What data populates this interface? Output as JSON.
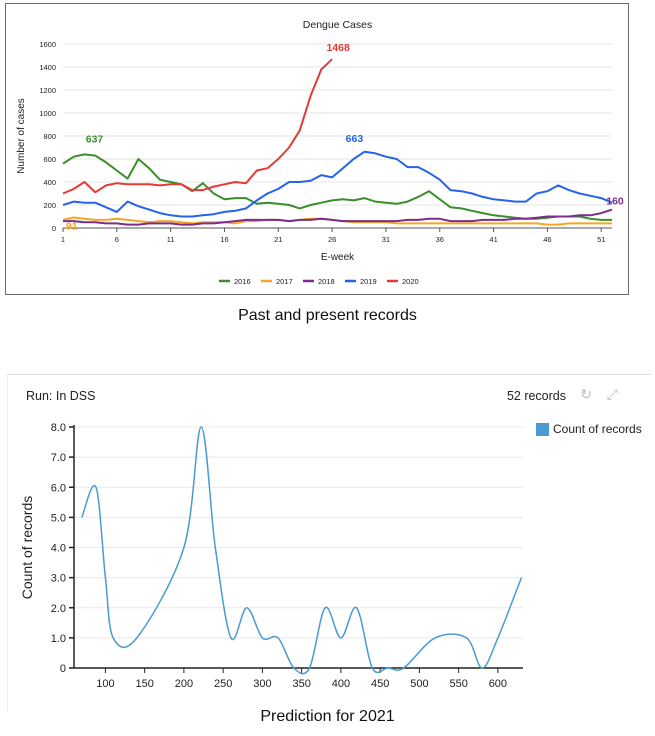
{
  "top_chart": {
    "title": "Dengue Cases",
    "ylabel": "Number of cases",
    "xlabel": "E-week",
    "caption": "Past and present records"
  },
  "bottom_chart": {
    "run_label": "Run: In DSS",
    "record_count": "52 records",
    "legend_label": "Count of records",
    "ylabel": "Count of records",
    "caption": "Prediction for 2021",
    "refresh_icon": "refresh-icon",
    "expand_icon": "expand-icon"
  },
  "colors": {
    "2016": "#3a8f2a",
    "2017": "#f5a623",
    "2018": "#7a2d8e",
    "2019": "#2563eb",
    "2020": "#e53935",
    "prediction": "#4a9bd1"
  },
  "chart_data": [
    {
      "type": "line",
      "title": "Dengue Cases",
      "xlabel": "E-week",
      "ylabel": "Number of cases",
      "xticks": [
        1,
        6,
        11,
        16,
        21,
        26,
        31,
        36,
        41,
        46,
        51
      ],
      "yticks": [
        0,
        200,
        400,
        600,
        800,
        1000,
        1200,
        1400,
        1600
      ],
      "xlim": [
        1,
        52
      ],
      "ylim": [
        0,
        1600
      ],
      "grid": true,
      "legend_position": "bottom",
      "annotations": [
        {
          "text": "637",
          "series": "2016"
        },
        {
          "text": "91",
          "series": "2017"
        },
        {
          "text": "1468",
          "series": "2020"
        },
        {
          "text": "663",
          "series": "2019"
        },
        {
          "text": "160",
          "series": "2018"
        }
      ],
      "series": [
        {
          "name": "2016",
          "x_start": 1,
          "values": [
            560,
            620,
            640,
            630,
            570,
            500,
            430,
            600,
            520,
            420,
            400,
            380,
            320,
            390,
            300,
            250,
            260,
            260,
            210,
            220,
            210,
            200,
            170,
            200,
            220,
            240,
            250,
            240,
            260,
            230,
            220,
            210,
            230,
            270,
            320,
            250,
            180,
            170,
            150,
            130,
            110,
            100,
            90,
            80,
            80,
            90,
            100,
            100,
            100,
            80,
            70,
            70
          ]
        },
        {
          "name": "2017",
          "x_start": 1,
          "values": [
            70,
            91,
            80,
            70,
            70,
            80,
            70,
            60,
            50,
            60,
            60,
            50,
            40,
            50,
            50,
            50,
            40,
            60,
            60,
            70,
            70,
            60,
            70,
            80,
            80,
            70,
            60,
            50,
            50,
            50,
            50,
            40,
            40,
            40,
            40,
            40,
            40,
            40,
            40,
            40,
            40,
            40,
            40,
            40,
            40,
            30,
            30,
            40,
            40,
            40,
            40,
            40
          ]
        },
        {
          "name": "2018",
          "x_start": 1,
          "values": [
            60,
            60,
            50,
            50,
            40,
            40,
            30,
            30,
            40,
            40,
            40,
            30,
            30,
            40,
            40,
            50,
            60,
            70,
            70,
            70,
            70,
            60,
            70,
            70,
            80,
            70,
            60,
            60,
            60,
            60,
            60,
            60,
            70,
            70,
            80,
            80,
            60,
            60,
            60,
            70,
            70,
            70,
            80,
            80,
            90,
            100,
            100,
            100,
            110,
            110,
            130,
            160
          ]
        },
        {
          "name": "2019",
          "x_start": 1,
          "values": [
            200,
            230,
            220,
            220,
            180,
            140,
            230,
            190,
            160,
            130,
            110,
            100,
            100,
            110,
            120,
            140,
            150,
            170,
            240,
            300,
            340,
            400,
            400,
            410,
            460,
            440,
            520,
            600,
            663,
            650,
            620,
            600,
            530,
            530,
            480,
            420,
            330,
            320,
            300,
            270,
            250,
            240,
            230,
            230,
            300,
            320,
            370,
            330,
            300,
            280,
            260,
            220
          ]
        },
        {
          "name": "2020",
          "x_start": 1,
          "values": [
            300,
            340,
            400,
            310,
            370,
            390,
            380,
            380,
            380,
            370,
            380,
            380,
            330,
            330,
            360,
            380,
            400,
            390,
            500,
            520,
            600,
            700,
            850,
            1150,
            1380,
            1468
          ]
        }
      ]
    },
    {
      "type": "line",
      "title": "",
      "xlabel": "",
      "ylabel": "Count of records",
      "xticks": [
        100,
        150,
        200,
        250,
        300,
        350,
        400,
        450,
        500,
        550,
        600
      ],
      "yticks": [
        0,
        1,
        2,
        3,
        4,
        5,
        6,
        7,
        8
      ],
      "ytick_labels": [
        "0",
        "1.0",
        "2.0",
        "3.0",
        "4.0",
        "5.0",
        "6.0",
        "7.0",
        "8.0"
      ],
      "xlim": [
        60,
        632
      ],
      "ylim": [
        0,
        8
      ],
      "grid": true,
      "legend_position": "top-right",
      "series": [
        {
          "name": "Count of records",
          "x": [
            70,
            88,
            100,
            110,
            140,
            200,
            222,
            240,
            260,
            280,
            300,
            320,
            340,
            360,
            380,
            400,
            420,
            440,
            460,
            480,
            520,
            560,
            580,
            600,
            630
          ],
          "values": [
            5,
            6,
            3,
            1,
            1,
            4,
            8,
            4,
            1,
            2,
            1,
            1,
            0,
            0,
            2,
            1,
            2,
            0,
            0,
            0,
            1,
            1,
            0,
            1,
            3
          ]
        }
      ]
    }
  ]
}
